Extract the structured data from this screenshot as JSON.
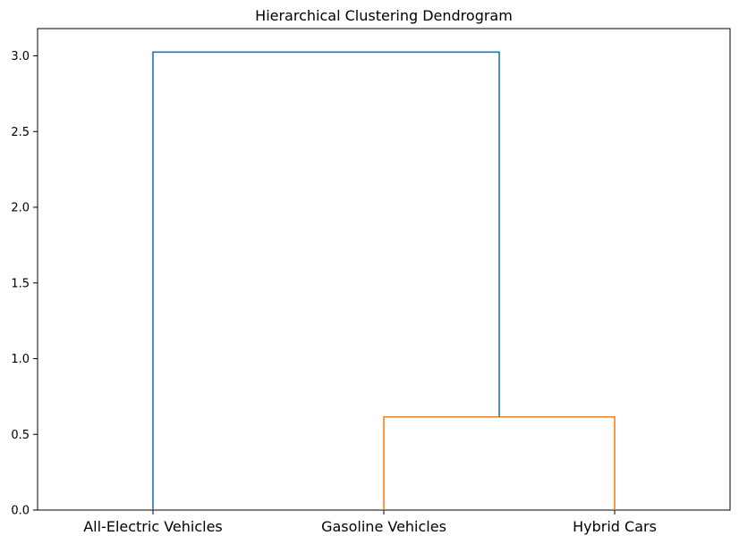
{
  "chart_data": {
    "type": "dendrogram",
    "title": "Hierarchical Clustering Dendrogram",
    "xlabel": "",
    "ylabel": "",
    "ylim": [
      0,
      3.18
    ],
    "yticks": [
      0.0,
      0.5,
      1.0,
      1.5,
      2.0,
      2.5,
      3.0
    ],
    "ytick_labels": [
      "0.0",
      "0.5",
      "1.0",
      "1.5",
      "2.0",
      "2.5",
      "3.0"
    ],
    "leaves": [
      "All-Electric Vehicles",
      "Gasoline Vehicles",
      "Hybrid Cars"
    ],
    "links": [
      {
        "name": "link-gasoline-hybrid",
        "left": 1,
        "right": 2,
        "height": 0.615,
        "left_height": 0,
        "right_height": 0,
        "color": "#ff7f0e"
      },
      {
        "name": "link-root",
        "left": 0,
        "right": 1.5,
        "height": 3.025,
        "left_height": 0,
        "right_height": 0.615,
        "color": "#1f77b4"
      }
    ],
    "grid": false
  }
}
